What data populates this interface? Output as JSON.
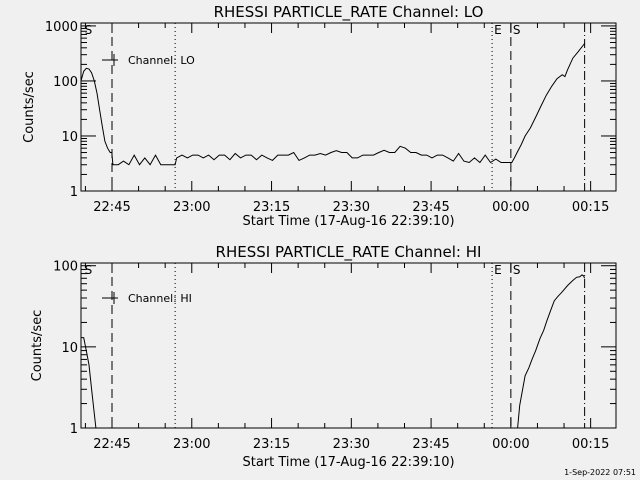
{
  "footer": "1-Sep-2022 07:51",
  "chart_data": [
    {
      "type": "line",
      "title": "RHESSI PARTICLE_RATE Channel: LO",
      "xlabel": "Start Time (17-Aug-16 22:39:10)",
      "ylabel": "Counts/sec",
      "x_unit": "minutes since 17-Aug-16 22:39:10",
      "xlim": [
        0,
        100.6
      ],
      "ylim": [
        1,
        1130
      ],
      "yscale": "log",
      "xticks": [
        {
          "t": 5.83,
          "label": "22:45"
        },
        {
          "t": 20.83,
          "label": "23:00"
        },
        {
          "t": 35.83,
          "label": "23:15"
        },
        {
          "t": 50.83,
          "label": "23:30"
        },
        {
          "t": 65.83,
          "label": "23:45"
        },
        {
          "t": 80.83,
          "label": "00:00"
        },
        {
          "t": 95.83,
          "label": "00:15"
        }
      ],
      "yticks": [
        {
          "v": 1,
          "label": "1"
        },
        {
          "v": 10,
          "label": "10"
        },
        {
          "v": 100,
          "label": "100"
        },
        {
          "v": 1000,
          "label": "1000"
        }
      ],
      "legend": {
        "label": "Channel: LO",
        "placement": "top-left"
      },
      "markers": [
        {
          "t": 0.3,
          "style": "none",
          "label": "S"
        },
        {
          "t": 5.83,
          "style": "dashed",
          "label": ""
        },
        {
          "t": 17.7,
          "style": "dotted",
          "label": ""
        },
        {
          "t": 77.3,
          "style": "dotted",
          "label": "E"
        },
        {
          "t": 80.83,
          "style": "dashed",
          "label": "S"
        },
        {
          "t": 94.7,
          "style": "dashdot",
          "label": ""
        }
      ],
      "series": [
        {
          "name": "Channel: LO",
          "points": [
            [
              0,
              100
            ],
            [
              0.5,
              150
            ],
            [
              1,
              170
            ],
            [
              1.5,
              165
            ],
            [
              2,
              140
            ],
            [
              2.5,
              100
            ],
            [
              3,
              60
            ],
            [
              3.5,
              30
            ],
            [
              4,
              15
            ],
            [
              4.5,
              8
            ],
            [
              5,
              6
            ],
            [
              5.5,
              5
            ],
            [
              5.8,
              5
            ],
            [
              6,
              3
            ],
            [
              7,
              3
            ],
            [
              8,
              3.5
            ],
            [
              9,
              3
            ],
            [
              10,
              4.5
            ],
            [
              11,
              3
            ],
            [
              12,
              4
            ],
            [
              13,
              3
            ],
            [
              14,
              4.5
            ],
            [
              15,
              3
            ],
            [
              16,
              3
            ],
            [
              17,
              3
            ],
            [
              17.7,
              3
            ],
            [
              18,
              4
            ],
            [
              19,
              4.5
            ],
            [
              20,
              4
            ],
            [
              21,
              4.5
            ],
            [
              22,
              4.5
            ],
            [
              23,
              4
            ],
            [
              24,
              4.5
            ],
            [
              25,
              3.7
            ],
            [
              26,
              4.5
            ],
            [
              27,
              4.5
            ],
            [
              28,
              3.7
            ],
            [
              29,
              4.8
            ],
            [
              30,
              4
            ],
            [
              31,
              4.5
            ],
            [
              32,
              4.5
            ],
            [
              33,
              3.7
            ],
            [
              34,
              4.5
            ],
            [
              35,
              4
            ],
            [
              36,
              3.6
            ],
            [
              37,
              4.5
            ],
            [
              38,
              4.5
            ],
            [
              39,
              4.5
            ],
            [
              40,
              5
            ],
            [
              41,
              3.6
            ],
            [
              42,
              4
            ],
            [
              43,
              4.5
            ],
            [
              44,
              4.5
            ],
            [
              45,
              4.8
            ],
            [
              46,
              4.5
            ],
            [
              47,
              5
            ],
            [
              48,
              5.4
            ],
            [
              49,
              5
            ],
            [
              50,
              5
            ],
            [
              51,
              4
            ],
            [
              52,
              4
            ],
            [
              53,
              4.5
            ],
            [
              54,
              4.5
            ],
            [
              55,
              4.5
            ],
            [
              56,
              5
            ],
            [
              57,
              5.5
            ],
            [
              58,
              5
            ],
            [
              59,
              5
            ],
            [
              60,
              6.5
            ],
            [
              61,
              6
            ],
            [
              62,
              5
            ],
            [
              63,
              5
            ],
            [
              64,
              4.5
            ],
            [
              65,
              4.5
            ],
            [
              66,
              4
            ],
            [
              67,
              4.5
            ],
            [
              68,
              4.5
            ],
            [
              69,
              4
            ],
            [
              70,
              3.5
            ],
            [
              71,
              4.8
            ],
            [
              72,
              3.5
            ],
            [
              73,
              3.3
            ],
            [
              74,
              4
            ],
            [
              75,
              3.3
            ],
            [
              76,
              4.5
            ],
            [
              77,
              3.3
            ],
            [
              78,
              3.8
            ],
            [
              79,
              3.3
            ],
            [
              80,
              3.3
            ],
            [
              81,
              3.3
            ],
            [
              81.5,
              4
            ],
            [
              82,
              5
            ],
            [
              82.8,
              7
            ],
            [
              83.5,
              10
            ],
            [
              84.5,
              14
            ],
            [
              85.5,
              22
            ],
            [
              86.5,
              35
            ],
            [
              87.5,
              55
            ],
            [
              88.5,
              80
            ],
            [
              89.5,
              110
            ],
            [
              90.5,
              130
            ],
            [
              91,
              120
            ],
            [
              91.5,
              160
            ],
            [
              92.5,
              260
            ],
            [
              93.5,
              340
            ],
            [
              94.7,
              480
            ]
          ]
        }
      ]
    },
    {
      "type": "line",
      "title": "RHESSI PARTICLE_RATE Channel: HI",
      "xlabel": "Start Time (17-Aug-16 22:39:10)",
      "ylabel": "Counts/sec",
      "x_unit": "minutes since 17-Aug-16 22:39:10",
      "xlim": [
        0,
        100.6
      ],
      "ylim": [
        1,
        108
      ],
      "yscale": "log",
      "xticks": [
        {
          "t": 5.83,
          "label": "22:45"
        },
        {
          "t": 20.83,
          "label": "23:00"
        },
        {
          "t": 35.83,
          "label": "23:15"
        },
        {
          "t": 50.83,
          "label": "23:30"
        },
        {
          "t": 65.83,
          "label": "23:45"
        },
        {
          "t": 80.83,
          "label": "00:00"
        },
        {
          "t": 95.83,
          "label": "00:15"
        }
      ],
      "yticks": [
        {
          "v": 1,
          "label": "1"
        },
        {
          "v": 10,
          "label": "10"
        },
        {
          "v": 100,
          "label": "100"
        }
      ],
      "legend": {
        "label": "Channel: HI",
        "placement": "top-left"
      },
      "markers": [
        {
          "t": 0.3,
          "style": "none",
          "label": "S"
        },
        {
          "t": 5.83,
          "style": "dashed",
          "label": ""
        },
        {
          "t": 17.7,
          "style": "dotted",
          "label": ""
        },
        {
          "t": 77.3,
          "style": "dotted",
          "label": "E"
        },
        {
          "t": 80.83,
          "style": "dashed",
          "label": "S"
        },
        {
          "t": 94.7,
          "style": "dashdot",
          "label": ""
        }
      ],
      "series": [
        {
          "name": "Channel: HI",
          "points": [
            [
              0,
              13
            ],
            [
              0.5,
              13
            ],
            [
              1,
              9
            ],
            [
              1.5,
              6
            ],
            [
              2,
              3
            ],
            [
              2.5,
              1.5
            ],
            [
              2.8,
              1
            ],
            [
              82.1,
              1
            ],
            [
              82.5,
              1.9
            ],
            [
              83.5,
              4.4
            ],
            [
              84.2,
              5.5
            ],
            [
              84.8,
              7
            ],
            [
              85.5,
              9
            ],
            [
              86.3,
              12.7
            ],
            [
              87,
              16
            ],
            [
              87.6,
              21
            ],
            [
              88.3,
              28
            ],
            [
              89,
              37
            ],
            [
              89.7,
              42
            ],
            [
              90.4,
              47
            ],
            [
              91.5,
              57
            ],
            [
              92.5,
              66
            ],
            [
              93.2,
              72
            ],
            [
              93.8,
              73
            ],
            [
              94.2,
              77
            ],
            [
              94.5,
              75
            ],
            [
              94.7,
              70
            ]
          ]
        }
      ]
    }
  ]
}
